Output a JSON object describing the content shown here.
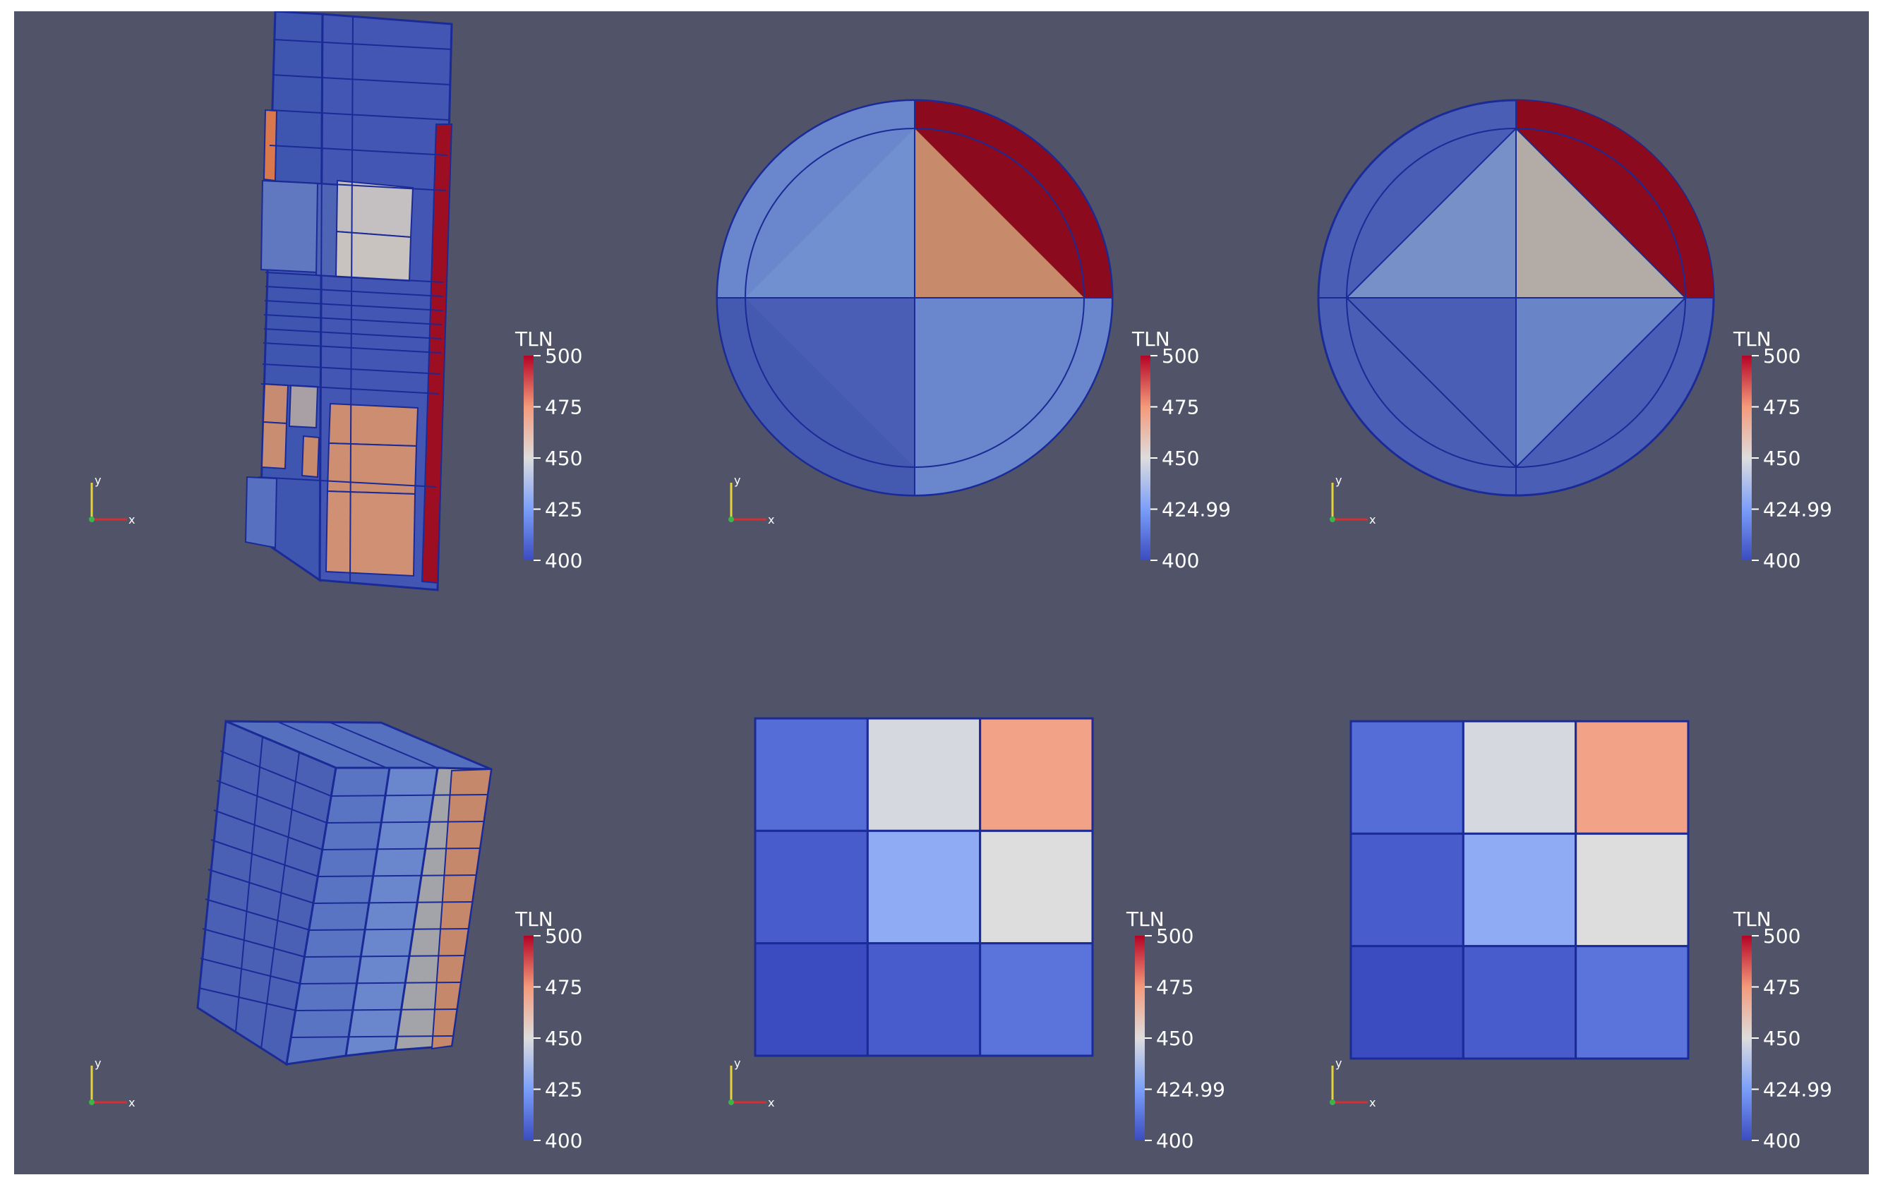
{
  "colors": {
    "background": "#515468",
    "mesh_edges": "#1a2a96",
    "colormap_low": "#3b4cc0",
    "colormap_mid": "#dddddd",
    "colormap_high": "#b40426",
    "hot_cell": "#8b0a1e"
  },
  "axes_icon": {
    "y": "y",
    "x": "x",
    "z": "z"
  },
  "views": [
    {
      "id": "view-1",
      "kind": "3d-tall-assembly",
      "colorbar": {
        "title": "TLN",
        "ticks": [
          "500",
          "475",
          "450",
          "425",
          "400"
        ],
        "range": [
          400,
          500
        ]
      }
    },
    {
      "id": "view-2",
      "kind": "2d-circle-slice",
      "colorbar": {
        "title": "TLN",
        "ticks": [
          "500",
          "475",
          "450",
          "424.99",
          "400"
        ],
        "range": [
          400,
          500
        ]
      }
    },
    {
      "id": "view-3",
      "kind": "2d-circle-slice",
      "colorbar": {
        "title": "TLN",
        "ticks": [
          "500",
          "475",
          "450",
          "424.99",
          "400"
        ],
        "range": [
          400,
          500
        ]
      }
    },
    {
      "id": "view-4",
      "kind": "3d-block-assembly",
      "colorbar": {
        "title": "TLN",
        "ticks": [
          "500",
          "475",
          "450",
          "425",
          "400"
        ],
        "range": [
          400,
          500
        ]
      }
    },
    {
      "id": "view-5",
      "kind": "2d-grid-slice",
      "colorbar": {
        "title": "TLN",
        "ticks": [
          "500",
          "475",
          "450",
          "424.99",
          "400"
        ],
        "range": [
          400,
          500
        ]
      },
      "cells": [
        [
          410,
          448,
          472
        ],
        [
          405,
          430,
          450
        ],
        [
          400,
          405,
          412
        ]
      ]
    },
    {
      "id": "view-6",
      "kind": "2d-grid-slice",
      "colorbar": {
        "title": "TLN",
        "ticks": [
          "500",
          "475",
          "450",
          "424.99",
          "400"
        ],
        "range": [
          400,
          500
        ]
      },
      "cells": [
        [
          410,
          448,
          472
        ],
        [
          405,
          430,
          450
        ],
        [
          400,
          405,
          412
        ]
      ]
    }
  ]
}
